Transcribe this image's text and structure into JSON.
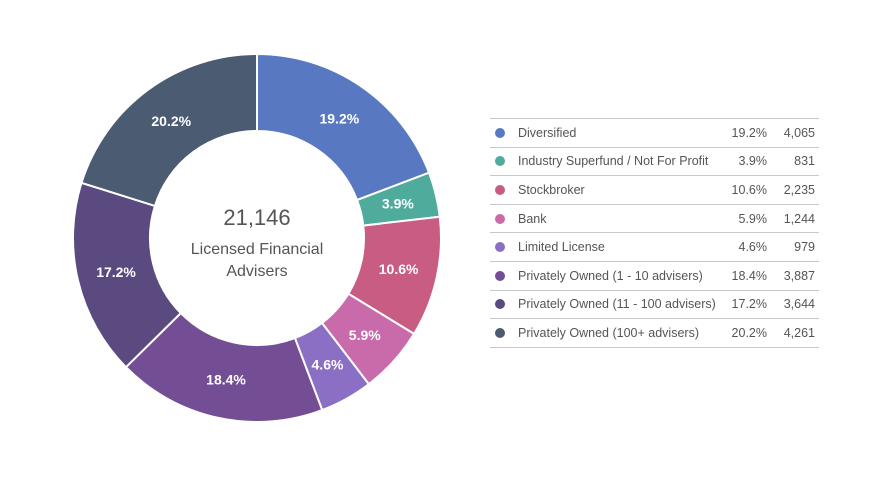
{
  "chart_data": {
    "type": "pie",
    "title": "",
    "center_total": "21,146",
    "center_caption_line1": "Licensed Financial",
    "center_caption_line2": "Advisers",
    "legend_position": "right",
    "slices": [
      {
        "name": "Diversified",
        "percent_label": "19.2%",
        "count_label": "4,065",
        "value": 4065,
        "color": "#5878c2"
      },
      {
        "name": "Industry Superfund / Not For Profit",
        "percent_label": "3.9%",
        "count_label": "831",
        "value": 831,
        "color": "#4fab9c"
      },
      {
        "name": "Stockbroker",
        "percent_label": "10.6%",
        "count_label": "2,235",
        "value": 2235,
        "color": "#c85c82"
      },
      {
        "name": "Bank",
        "percent_label": "5.9%",
        "count_label": "1,244",
        "value": 1244,
        "color": "#c96aaa"
      },
      {
        "name": "Limited License",
        "percent_label": "4.6%",
        "count_label": "979",
        "value": 979,
        "color": "#8a6fc4"
      },
      {
        "name": "Privately Owned (1 - 10 advisers)",
        "percent_label": "18.4%",
        "count_label": "3,887",
        "value": 3887,
        "color": "#744e94"
      },
      {
        "name": "Privately Owned (11 - 100 advisers)",
        "percent_label": "17.2%",
        "count_label": "3,644",
        "value": 3644,
        "color": "#5a4a80"
      },
      {
        "name": "Privately Owned (100+ advisers)",
        "percent_label": "20.2%",
        "count_label": "4,261",
        "value": 4261,
        "color": "#4b5c72"
      }
    ]
  }
}
